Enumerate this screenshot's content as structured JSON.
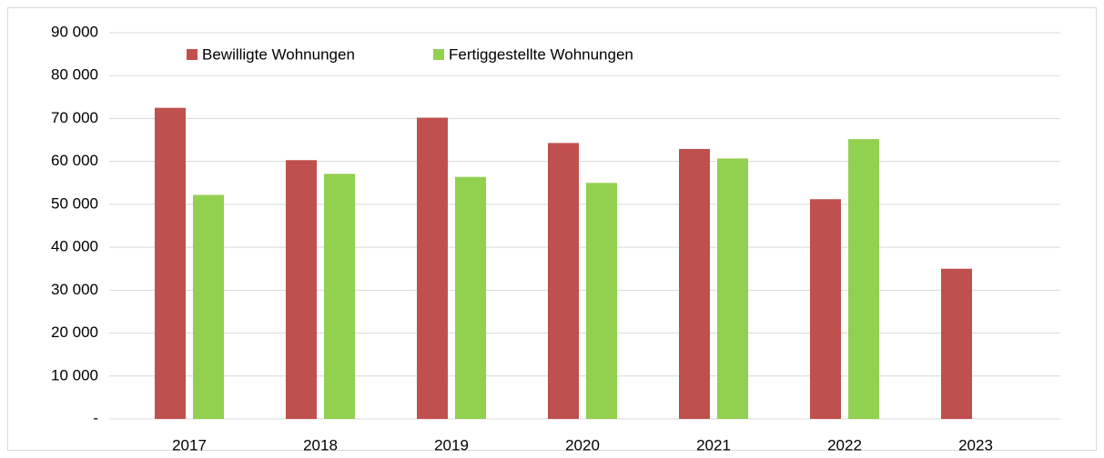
{
  "chart_data": {
    "type": "bar",
    "categories": [
      "2017",
      "2018",
      "2019",
      "2020",
      "2021",
      "2022",
      "2023"
    ],
    "series": [
      {
        "name": "Bewilligte Wohnungen",
        "color": "#c0504d",
        "values": [
          72500,
          60300,
          70200,
          64300,
          62900,
          51200,
          35000
        ]
      },
      {
        "name": "Fertiggestellte Wohnungen",
        "color": "#92d050",
        "values": [
          52200,
          57100,
          56400,
          55000,
          60700,
          65200,
          null
        ]
      }
    ],
    "ylim": [
      0,
      90000
    ],
    "yticks": [
      {
        "value": 0,
        "label": "-"
      },
      {
        "value": 10000,
        "label": "10 000"
      },
      {
        "value": 20000,
        "label": "20 000"
      },
      {
        "value": 30000,
        "label": "30 000"
      },
      {
        "value": 40000,
        "label": "40 000"
      },
      {
        "value": 50000,
        "label": "50 000"
      },
      {
        "value": 60000,
        "label": "60 000"
      },
      {
        "value": 70000,
        "label": "70 000"
      },
      {
        "value": 80000,
        "label": "80 000"
      },
      {
        "value": 90000,
        "label": "90 000"
      }
    ],
    "grid": true,
    "legend": "top"
  }
}
